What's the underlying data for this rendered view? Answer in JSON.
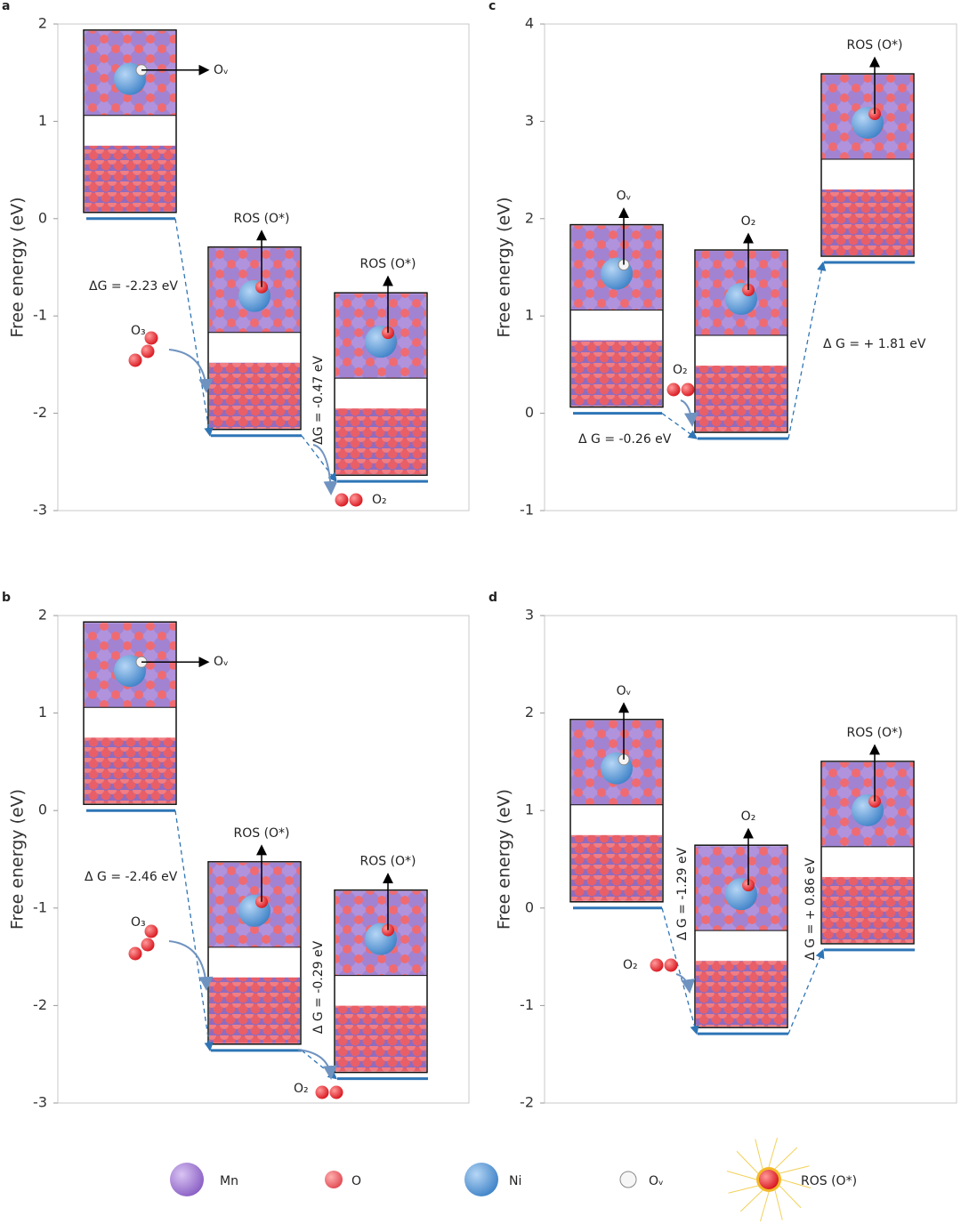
{
  "chart_data": [
    {
      "type": "energy-diagram",
      "panel": "a",
      "ylabel": "Free energy (eV)",
      "ylim": [
        -3,
        2
      ],
      "yticks": [
        -3,
        -2,
        -1,
        0,
        1,
        2
      ],
      "values": [
        0,
        -2.23,
        -2.7
      ],
      "color": "#2e75b6",
      "tags": [
        "Oᵥ",
        "ROS (O*)",
        "ROS (O*)"
      ],
      "annotations": [
        "ΔG = -2.23 eV",
        "ΔG = -0.47 eV"
      ],
      "molecules": [
        "O₃",
        "O₂"
      ]
    },
    {
      "type": "energy-diagram",
      "panel": "b",
      "ylabel": "Free energy (eV)",
      "ylim": [
        -3,
        2
      ],
      "yticks": [
        -3,
        -2,
        -1,
        0,
        1,
        2
      ],
      "values": [
        0,
        -2.46,
        -2.75
      ],
      "color": "#2e75b6",
      "tags": [
        "Oᵥ",
        "ROS (O*)",
        "ROS (O*)"
      ],
      "annotations": [
        "Δ G = -2.46 eV",
        "Δ G = -0.29 eV"
      ],
      "molecules": [
        "O₃",
        "O₂"
      ]
    },
    {
      "type": "energy-diagram",
      "panel": "c",
      "ylabel": "Free energy (eV)",
      "ylim": [
        -1,
        4
      ],
      "yticks": [
        -1,
        0,
        1,
        2,
        3,
        4
      ],
      "values": [
        0,
        -0.26,
        1.55
      ],
      "color": "#2e75b6",
      "tags": [
        "Oᵥ",
        "O₂",
        "ROS (O*)"
      ],
      "annotations": [
        "Δ G = -0.26 eV",
        "Δ G = + 1.81 eV"
      ],
      "molecules": [
        "O₂"
      ]
    },
    {
      "type": "energy-diagram",
      "panel": "d",
      "ylabel": "Free energy (eV)",
      "ylim": [
        -2,
        3
      ],
      "yticks": [
        -2,
        -1,
        0,
        1,
        2,
        3
      ],
      "values": [
        0,
        -1.29,
        -0.43
      ],
      "color": "#2e75b6",
      "tags": [
        "Oᵥ",
        "O₂",
        "ROS (O*)"
      ],
      "annotations": [
        "Δ G = -1.29 eV",
        "Δ G = + 0.86 eV"
      ],
      "molecules": [
        "O₂"
      ]
    }
  ],
  "legend": [
    "Mn",
    "O",
    "Ni",
    "Oᵥ",
    "ROS (O*)"
  ]
}
